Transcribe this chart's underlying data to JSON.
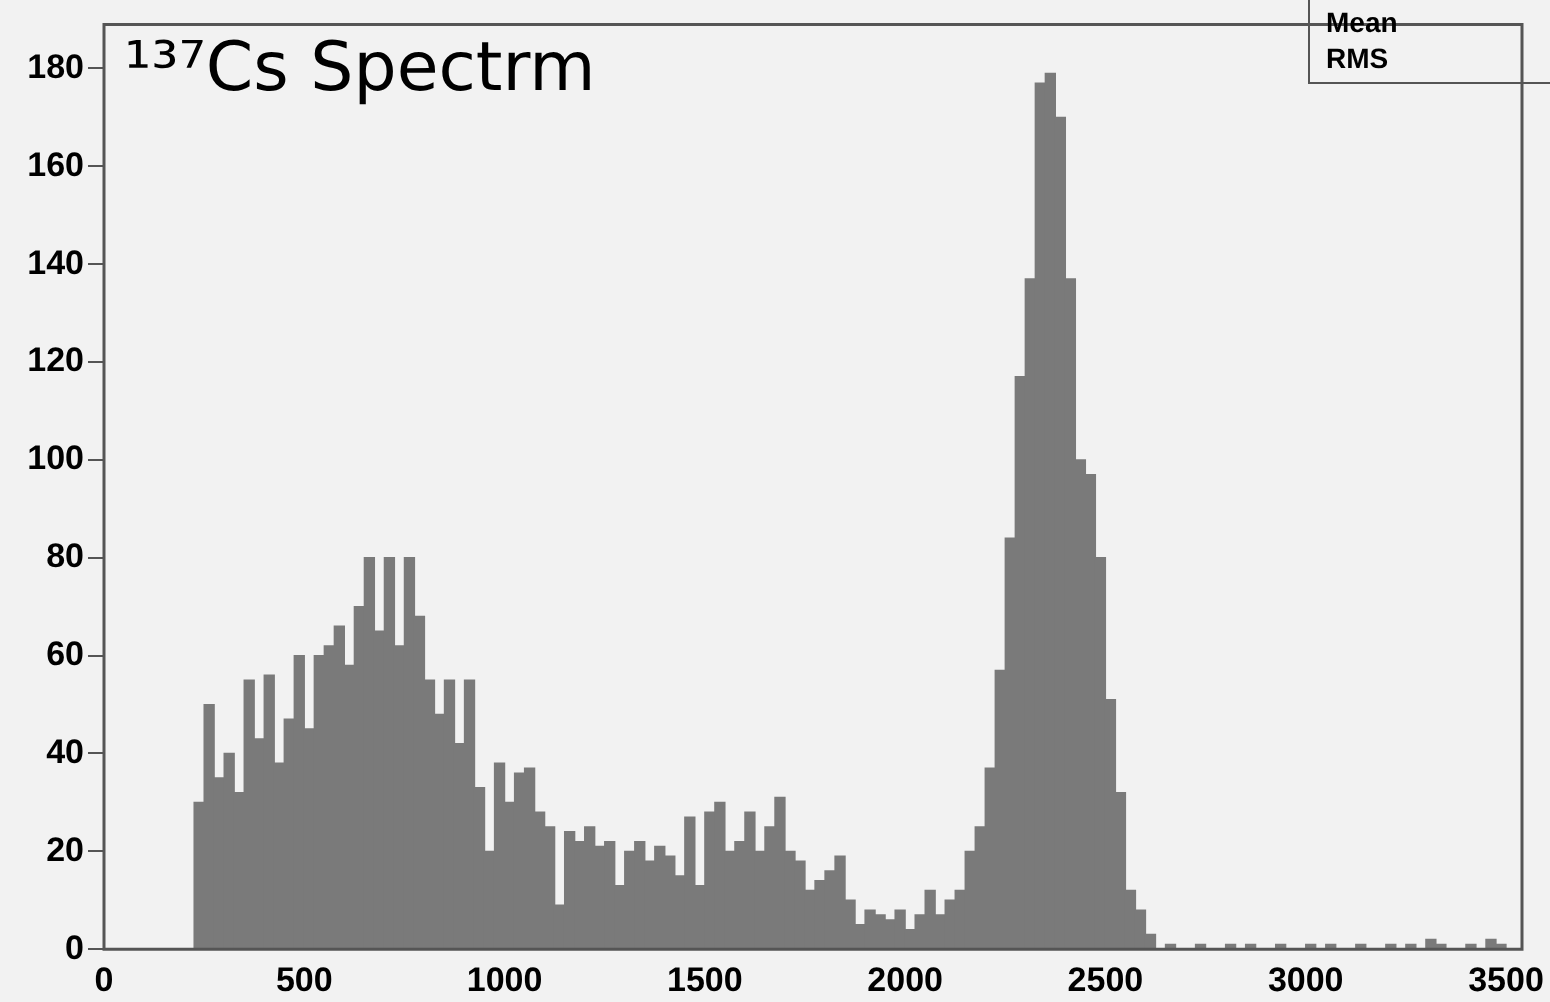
{
  "chart_data": {
    "type": "histogram",
    "title": "¹³⁷Cs Spectrm",
    "annotations": [
      "Mean",
      "RMS"
    ],
    "bins": [
      200,
      225,
      250,
      275,
      300,
      325,
      350,
      375,
      400,
      425,
      450,
      475,
      500,
      525,
      550,
      575,
      600,
      625,
      650,
      675,
      700,
      725,
      750,
      775,
      800,
      825,
      850,
      875,
      900,
      925,
      950,
      975,
      1000,
      1025,
      1050,
      1075,
      1100,
      1125,
      1150,
      1175,
      1200,
      1225,
      1250,
      1275,
      1300,
      1325,
      1350,
      1375,
      1400,
      1425,
      1450,
      1475,
      1500,
      1525,
      1550,
      1575,
      1600,
      1625,
      1650,
      1675,
      1700,
      1725,
      1750,
      1775,
      1800,
      1825,
      1850,
      1875,
      1900,
      1925,
      1950,
      1975,
      2000,
      2025,
      2050,
      2075,
      2100,
      2125,
      2150,
      2175,
      2200,
      2225,
      2250,
      2275,
      2300,
      2325,
      2350,
      2375,
      2400,
      2425,
      2450,
      2475,
      2500,
      2525,
      2550,
      2575,
      2600,
      2625,
      2650,
      2675,
      2700,
      2725,
      2750,
      2775,
      2800,
      2825,
      2850,
      2875,
      2900,
      2925,
      2950,
      2975,
      3000,
      3025,
      3050,
      3075,
      3100,
      3125,
      3150,
      3175,
      3200,
      3225,
      3250,
      3275,
      3300,
      3325,
      3350,
      3375,
      3400,
      3425,
      3450,
      3475,
      3500
    ],
    "values": [
      0,
      30,
      50,
      35,
      40,
      32,
      55,
      43,
      56,
      38,
      47,
      60,
      45,
      60,
      62,
      66,
      58,
      70,
      80,
      65,
      80,
      62,
      80,
      68,
      55,
      48,
      55,
      42,
      55,
      33,
      20,
      38,
      30,
      36,
      37,
      28,
      25,
      9,
      24,
      22,
      25,
      21,
      22,
      13,
      20,
      22,
      18,
      21,
      19,
      15,
      27,
      13,
      28,
      30,
      20,
      22,
      28,
      20,
      25,
      31,
      20,
      18,
      12,
      14,
      16,
      19,
      10,
      5,
      8,
      7,
      6,
      8,
      4,
      7,
      12,
      7,
      10,
      12,
      20,
      25,
      37,
      57,
      84,
      117,
      137,
      177,
      179,
      170,
      137,
      100,
      97,
      80,
      51,
      32,
      12,
      8,
      3,
      0,
      1,
      0,
      0,
      1,
      0,
      0,
      1,
      0,
      1,
      0,
      0,
      1,
      0,
      0,
      1,
      0,
      1,
      0,
      0,
      1,
      0,
      0,
      1,
      0,
      1,
      0,
      2,
      1,
      0,
      0,
      1,
      0,
      2,
      1
    ],
    "color": "#7a7a7a",
    "xlim": [
      0,
      3540
    ],
    "xticks": [
      0,
      500,
      1000,
      1500,
      2000,
      2500,
      3000,
      3500
    ],
    "ylim": [
      0,
      189
    ],
    "yticks": [
      0,
      20,
      40,
      60,
      80,
      100,
      120,
      140,
      160,
      180
    ]
  }
}
